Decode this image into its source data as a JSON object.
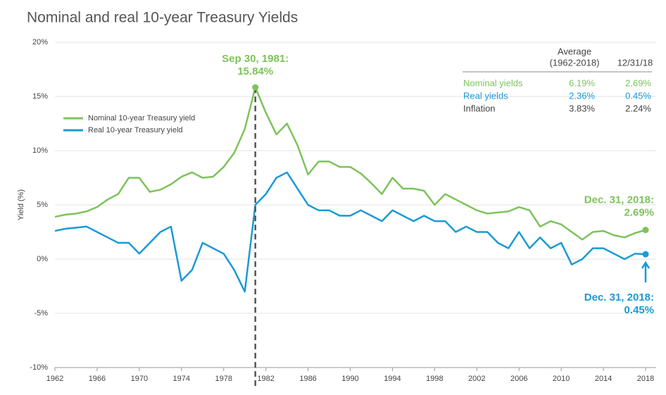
{
  "chart_data": {
    "type": "line",
    "title": "Nominal and real 10-year Treasury Yields",
    "y_label": "Yield (%)",
    "x": [
      1962,
      1963,
      1964,
      1965,
      1966,
      1967,
      1968,
      1969,
      1970,
      1971,
      1972,
      1973,
      1974,
      1975,
      1976,
      1977,
      1978,
      1979,
      1980,
      1981,
      1982,
      1983,
      1984,
      1985,
      1986,
      1987,
      1988,
      1989,
      1990,
      1991,
      1992,
      1993,
      1994,
      1995,
      1996,
      1997,
      1998,
      1999,
      2000,
      2001,
      2002,
      2003,
      2004,
      2005,
      2006,
      2007,
      2008,
      2009,
      2010,
      2011,
      2012,
      2013,
      2014,
      2015,
      2016,
      2017,
      2018
    ],
    "series": [
      {
        "name": "Nominal 10-year Treasury yield",
        "color": "#7dc35b",
        "values": [
          3.9,
          4.1,
          4.2,
          4.4,
          4.8,
          5.5,
          6.0,
          7.5,
          7.5,
          6.2,
          6.4,
          6.9,
          7.6,
          8.0,
          7.5,
          7.6,
          8.5,
          9.8,
          12.0,
          15.84,
          13.5,
          11.5,
          12.5,
          10.5,
          7.8,
          9.0,
          9.0,
          8.5,
          8.5,
          7.9,
          7.0,
          6.0,
          7.5,
          6.5,
          6.5,
          6.3,
          5.0,
          6.0,
          5.5,
          5.0,
          4.5,
          4.2,
          4.3,
          4.4,
          4.8,
          4.5,
          3.0,
          3.5,
          3.2,
          2.5,
          1.8,
          2.5,
          2.6,
          2.2,
          2.0,
          2.4,
          2.69
        ]
      },
      {
        "name": "Real 10-year Treasury yield",
        "color": "#1a9ad6",
        "values": [
          2.6,
          2.8,
          2.9,
          3.0,
          2.5,
          2.0,
          1.5,
          1.5,
          0.5,
          1.5,
          2.5,
          3.0,
          -2.0,
          -1.0,
          1.5,
          1.0,
          0.5,
          -1.0,
          -3.0,
          5.0,
          6.0,
          7.5,
          8.0,
          6.5,
          5.0,
          4.5,
          4.5,
          4.0,
          4.0,
          4.5,
          4.0,
          3.5,
          4.5,
          4.0,
          3.5,
          4.0,
          3.5,
          3.5,
          2.5,
          3.0,
          2.5,
          2.5,
          1.5,
          1.0,
          2.5,
          1.0,
          2.0,
          1.0,
          1.5,
          -0.5,
          0.0,
          1.0,
          1.0,
          0.5,
          0.0,
          0.5,
          0.45
        ]
      }
    ],
    "xlim": [
      1962,
      2019
    ],
    "xticks": [
      1962,
      1966,
      1970,
      1974,
      1978,
      1982,
      1986,
      1990,
      1994,
      1998,
      2002,
      2006,
      2010,
      2014,
      2018
    ],
    "ylim": [
      -10,
      20
    ],
    "yticks": [
      {
        "value": -10,
        "label": "-10%"
      },
      {
        "value": -5,
        "label": "-5%"
      },
      {
        "value": 0,
        "label": "0%"
      },
      {
        "value": 5,
        "label": "5%"
      },
      {
        "value": 10,
        "label": "10%"
      },
      {
        "value": 15,
        "label": "15%"
      },
      {
        "value": 20,
        "label": "20%"
      }
    ],
    "grid": true,
    "legend": "upper left",
    "annotations": [
      {
        "series": 0,
        "x": 1981,
        "text": "Sep 30, 1981:",
        "label": "15.84%"
      },
      {
        "series": 0,
        "x": 2018,
        "text": "Dec. 31, 2018:",
        "label": "2.69%"
      },
      {
        "series": 1,
        "x": 2018,
        "text": "Dec. 31, 2018:",
        "label": "0.45%"
      }
    ],
    "table": {
      "headers": [
        [
          "Average",
          "(1962-2018)"
        ],
        [
          "12/31/18"
        ]
      ],
      "rows": [
        {
          "name": "Nominal yields",
          "values": [
            "6.19%",
            "2.69%"
          ],
          "color": "#7dc35b"
        },
        {
          "name": "Real yields",
          "values": [
            "2.36%",
            "0.45%"
          ],
          "color": "#1a9ad6"
        },
        {
          "name": "Inflation",
          "values": [
            "3.83%",
            "2.24%"
          ],
          "color": "#444444"
        }
      ]
    }
  }
}
